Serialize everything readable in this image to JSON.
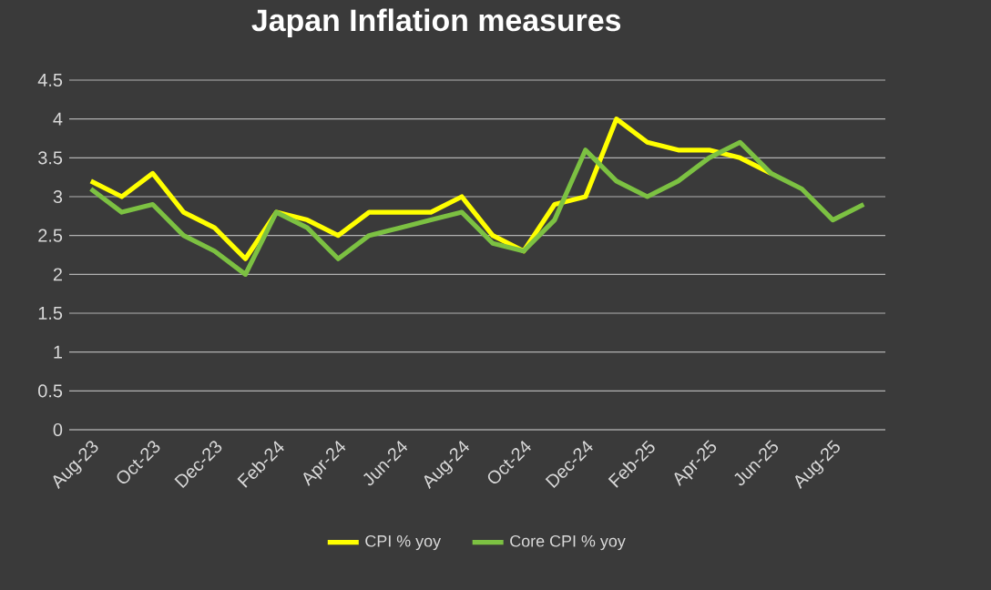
{
  "chart_data": {
    "type": "line",
    "title": "Japan Inflation measures",
    "categories": [
      "Aug-23",
      null,
      "Oct-23",
      null,
      "Dec-23",
      null,
      "Feb-24",
      null,
      "Apr-24",
      null,
      "Jun-24",
      null,
      "Aug-24",
      null,
      "Oct-24",
      null,
      "Dec-24",
      null,
      "Feb-25",
      null,
      "Apr-25",
      null,
      "Jun-25",
      null,
      "Aug-25",
      null
    ],
    "series": [
      {
        "name": "CPI % yoy",
        "color": "#ffff00",
        "values": [
          3.2,
          3.0,
          3.3,
          2.8,
          2.6,
          2.2,
          2.8,
          2.7,
          2.5,
          2.8,
          2.8,
          2.8,
          3.0,
          2.5,
          2.3,
          2.9,
          3.0,
          4.0,
          3.7,
          3.6,
          3.6,
          3.5,
          3.3,
          null,
          null,
          null
        ]
      },
      {
        "name": "Core CPI % yoy",
        "color": "#7cc142",
        "values": [
          3.1,
          2.8,
          2.9,
          2.5,
          2.3,
          2.0,
          2.8,
          2.6,
          2.2,
          2.5,
          2.6,
          2.7,
          2.8,
          2.4,
          2.3,
          2.7,
          3.6,
          3.2,
          3.0,
          3.2,
          3.5,
          3.7,
          3.3,
          3.1,
          2.7,
          2.9
        ]
      }
    ],
    "ylim": [
      0,
      4.5
    ],
    "yticks": [
      0,
      0.5,
      1,
      1.5,
      2,
      2.5,
      3,
      3.5,
      4,
      4.5
    ],
    "grid": "y",
    "legend": "bottom",
    "marker": "none",
    "line_style": "solid"
  }
}
